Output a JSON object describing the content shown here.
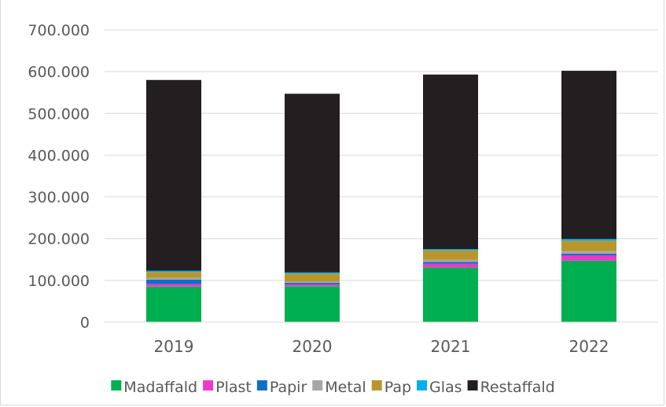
{
  "chart_data": {
    "type": "bar",
    "stacked": true,
    "categories": [
      "2019",
      "2020",
      "2021",
      "2022"
    ],
    "series": [
      {
        "name": "Madaffald",
        "color": "#00b050",
        "values": [
          85000,
          86000,
          131000,
          147000
        ]
      },
      {
        "name": "Plast",
        "color": "#f038c8",
        "values": [
          6000,
          4000,
          9000,
          13000
        ]
      },
      {
        "name": "Papir",
        "color": "#0f6fc6",
        "values": [
          11000,
          4000,
          4000,
          4000
        ]
      },
      {
        "name": "Metal",
        "color": "#a6a6a6",
        "values": [
          4000,
          3000,
          5000,
          6000
        ]
      },
      {
        "name": "Pap",
        "color": "#b8962e",
        "values": [
          14000,
          19000,
          23000,
          25000
        ]
      },
      {
        "name": "Glas",
        "color": "#00b0f0",
        "values": [
          3000,
          3000,
          3000,
          4000
        ]
      },
      {
        "name": "Restaffald",
        "color": "#231f20",
        "values": [
          457000,
          428000,
          418000,
          403000
        ]
      }
    ],
    "ylim": [
      0,
      700000
    ],
    "yticks": [
      0,
      100000,
      200000,
      300000,
      400000,
      500000,
      600000,
      700000
    ],
    "ytick_labels": [
      "0",
      "100.000",
      "200.000",
      "300.000",
      "400.000",
      "500.000",
      "600.000",
      "700.000"
    ],
    "grid": true,
    "legend_position": "bottom",
    "title": "",
    "xlabel": "",
    "ylabel": ""
  }
}
